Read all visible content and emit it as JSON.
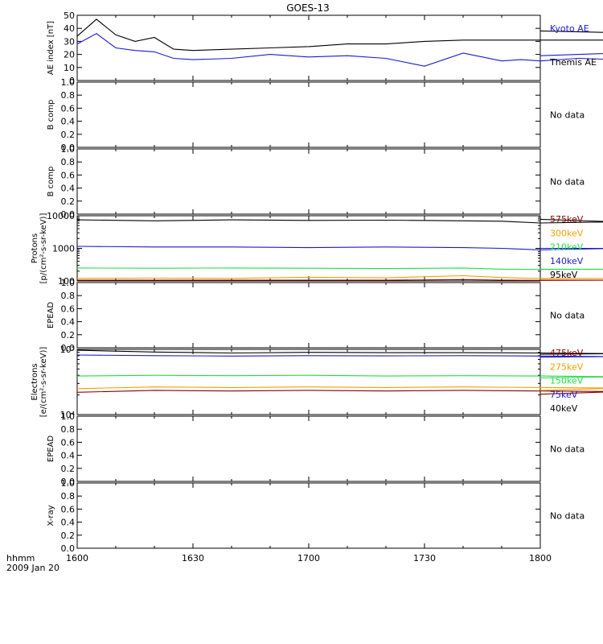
{
  "title": "GOES-13",
  "time_axis": {
    "ticks": [
      "1600",
      "1630",
      "1700",
      "1730",
      "1800"
    ],
    "unit_label": "hhmm",
    "date_label": "2009 Jan 20"
  },
  "colors": {
    "black": "#000000",
    "blue": "#1a1ad0",
    "green": "#22dd44",
    "orange": "#f0a000",
    "darkred": "#8b0000",
    "red": "#cc0000"
  },
  "chart_data": [
    {
      "id": "ae",
      "type": "line",
      "ylabel": "AE index [nT]",
      "yrange": [
        0,
        50
      ],
      "y_ticks": [
        "0",
        "10",
        "20",
        "30",
        "40",
        "50"
      ],
      "x": [
        1600,
        1605,
        1610,
        1615,
        1620,
        1625,
        1630,
        1640,
        1650,
        1700,
        1710,
        1720,
        1730,
        1740,
        1750,
        1755,
        1760,
        1770,
        1780,
        1790,
        1800
      ],
      "series": [
        {
          "name": "Kyoto AE",
          "color": "#1a1ad0",
          "values": [
            28,
            36,
            25,
            23,
            22,
            17,
            16,
            17,
            20,
            18,
            19,
            17,
            11,
            21,
            15,
            16,
            15,
            17,
            16,
            22,
            19
          ]
        },
        {
          "name": "Themis AE",
          "color": "#000000",
          "values": [
            34,
            47,
            35,
            30,
            33,
            24,
            23,
            24,
            25,
            26,
            28,
            28,
            30,
            31,
            31,
            31,
            31,
            31,
            31,
            36,
            38
          ]
        }
      ]
    },
    {
      "id": "bcomp1",
      "ylabel": "B comp",
      "yrange": [
        0,
        1
      ],
      "y_ticks": [
        "0.0",
        "0.2",
        "0.4",
        "0.6",
        "0.8",
        "1.0"
      ],
      "series": [],
      "message": "No data"
    },
    {
      "id": "bcomp2",
      "ylabel": "B comp",
      "yrange": [
        0,
        1
      ],
      "y_ticks": [
        "0.0",
        "0.2",
        "0.4",
        "0.6",
        "0.8",
        "1.0"
      ],
      "series": [],
      "message": "No data"
    },
    {
      "id": "protons",
      "type": "line",
      "ylabel": "Protons [p/(cm²-s-sr-keV)]",
      "scale": "log",
      "yrange": [
        100,
        10000
      ],
      "y_ticks": [
        "100",
        "1000",
        "10000"
      ],
      "x": [
        1600,
        1620,
        1640,
        1700,
        1720,
        1740,
        1750,
        1760,
        1780,
        1800
      ],
      "series": [
        {
          "name": "575keV",
          "color": "#8b0000",
          "values": [
            105,
            105,
            105,
            106,
            105,
            110,
            106,
            104,
            105,
            105
          ]
        },
        {
          "name": "300keV",
          "color": "#f0a000",
          "values": [
            120,
            122,
            120,
            130,
            125,
            145,
            128,
            118,
            120,
            120
          ]
        },
        {
          "name": "210keV",
          "color": "#22dd44",
          "values": [
            250,
            245,
            250,
            245,
            240,
            250,
            230,
            225,
            230,
            230
          ]
        },
        {
          "name": "140keV",
          "color": "#1a1ad0",
          "values": [
            1150,
            1100,
            1100,
            1050,
            1100,
            1050,
            1000,
            900,
            1000,
            1000
          ]
        },
        {
          "name": "95keV",
          "color": "#000000",
          "values": [
            7500,
            7000,
            7500,
            7200,
            7300,
            7000,
            6800,
            6000,
            6500,
            7800
          ]
        }
      ]
    },
    {
      "id": "epead1",
      "ylabel": "EPEAD",
      "yrange": [
        0,
        1
      ],
      "y_ticks": [
        "0.0",
        "0.2",
        "0.4",
        "0.6",
        "0.8",
        "1.0"
      ],
      "series": [],
      "message": "No data"
    },
    {
      "id": "electrons",
      "type": "line",
      "ylabel": "Electrons [e/(cm²-s-sr-keV)]",
      "scale": "log",
      "yrange": [
        10000,
        100000
      ],
      "y_ticks": [
        "10⁴",
        "10⁵"
      ],
      "x": [
        1600,
        1620,
        1640,
        1700,
        1720,
        1740,
        1760,
        1780,
        1800
      ],
      "series": [
        {
          "name": "475keV",
          "color": "#8b0000",
          "values": [
            22000,
            23500,
            23000,
            23500,
            23000,
            23500,
            23000,
            22500,
            20500
          ]
        },
        {
          "name": "275keV",
          "color": "#f0a000",
          "values": [
            25000,
            26500,
            26000,
            26500,
            26000,
            26500,
            26000,
            25500,
            23500
          ]
        },
        {
          "name": "150keV",
          "color": "#22dd44",
          "values": [
            39000,
            40000,
            39500,
            40000,
            39000,
            39500,
            39000,
            38000,
            36500
          ]
        },
        {
          "name": "75keV",
          "color": "#1a1ad0",
          "values": [
            82000,
            80000,
            79000,
            80000,
            79500,
            80000,
            79000,
            77500,
            76000
          ]
        },
        {
          "name": "40keV",
          "color": "#000000",
          "values": [
            97000,
            91000,
            88000,
            90000,
            89000,
            89000,
            88000,
            86000,
            84000
          ]
        }
      ]
    },
    {
      "id": "epead2",
      "ylabel": "EPEAD",
      "yrange": [
        0,
        1
      ],
      "y_ticks": [
        "0.0",
        "0.2",
        "0.4",
        "0.6",
        "0.8",
        "1.0"
      ],
      "series": [],
      "message": "No data"
    },
    {
      "id": "xray",
      "ylabel": "X-ray",
      "yrange": [
        0,
        1
      ],
      "y_ticks": [
        "0.0",
        "0.2",
        "0.4",
        "0.6",
        "0.8",
        "1.0"
      ],
      "series": [],
      "message": "No data"
    }
  ]
}
